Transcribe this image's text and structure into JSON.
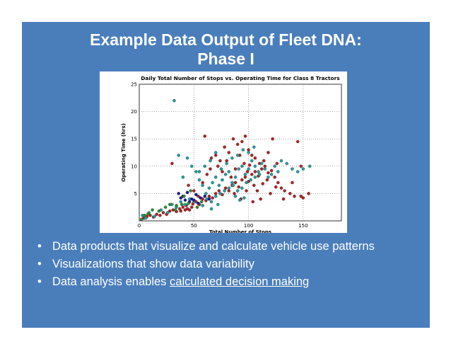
{
  "slide": {
    "title_line1": "Example Data Output of Fleet DNA:",
    "title_line2": "Phase I",
    "background_color": "#4a7ebb",
    "bullets": [
      {
        "prefix": "Data products that visualize and calculate vehicle use patterns",
        "link": "",
        "suffix": ""
      },
      {
        "prefix": "Visualizations that show data variability",
        "link": "",
        "suffix": ""
      },
      {
        "prefix": "Data analysis enables ",
        "link": "calculated decision making",
        "suffix": ""
      }
    ],
    "bullet_glyph": "•"
  },
  "chart_data": {
    "type": "scatter",
    "title": "Daily Total Number of Stops vs. Operating Time for Class 8 Tractors",
    "xlabel": "Total Number of Stops",
    "ylabel": "Operating Time (hrs)",
    "xlim": [
      0,
      185
    ],
    "ylim": [
      0,
      25
    ],
    "xticks": [
      0,
      50,
      100,
      150
    ],
    "yticks": [
      5,
      10,
      15,
      20,
      25
    ],
    "grid": true,
    "legend": "none",
    "series": [
      {
        "color": "#b22222",
        "points": [
          [
            4,
            0.5
          ],
          [
            7,
            0.8
          ],
          [
            10,
            1.0
          ],
          [
            13,
            0.7
          ],
          [
            16,
            1.2
          ],
          [
            19,
            1.0
          ],
          [
            22,
            1.5
          ],
          [
            25,
            1.2
          ],
          [
            28,
            1.8
          ],
          [
            31,
            2.0
          ],
          [
            34,
            1.7
          ],
          [
            37,
            2.2
          ],
          [
            40,
            2.5
          ],
          [
            43,
            2.8
          ],
          [
            46,
            2.0
          ],
          [
            49,
            3.1
          ],
          [
            52,
            3.5
          ],
          [
            55,
            3.0
          ],
          [
            58,
            4.0
          ],
          [
            61,
            3.7
          ],
          [
            64,
            4.5
          ],
          [
            67,
            4.2
          ],
          [
            70,
            5.0
          ],
          [
            73,
            5.5
          ],
          [
            76,
            4.8
          ],
          [
            79,
            6.0
          ],
          [
            82,
            5.5
          ],
          [
            85,
            6.5
          ],
          [
            88,
            7.0
          ],
          [
            91,
            6.2
          ],
          [
            94,
            7.5
          ],
          [
            97,
            8.0
          ],
          [
            100,
            7.2
          ],
          [
            103,
            8.5
          ],
          [
            106,
            9.0
          ],
          [
            109,
            8.2
          ],
          [
            112,
            9.5
          ],
          [
            115,
            10.0
          ],
          [
            118,
            8.8
          ],
          [
            121,
            9.2
          ],
          [
            124,
            8.0
          ],
          [
            127,
            7.0
          ],
          [
            130,
            6.0
          ],
          [
            133,
            5.5
          ],
          [
            138,
            5.0
          ],
          [
            142,
            4.5
          ],
          [
            148,
            4.5
          ],
          [
            150,
            4.2
          ],
          [
            155,
            5.0
          ],
          [
            58,
            7.0
          ],
          [
            62,
            8.5
          ],
          [
            66,
            11.5
          ],
          [
            70,
            12.0
          ],
          [
            74,
            11.0
          ],
          [
            78,
            13.5
          ],
          [
            82,
            12.5
          ],
          [
            86,
            15.0
          ],
          [
            90,
            14.0
          ],
          [
            94,
            14.5
          ],
          [
            97,
            15.5
          ],
          [
            100,
            13.0
          ],
          [
            103,
            12.0
          ],
          [
            106,
            11.5
          ],
          [
            110,
            10.5
          ],
          [
            114,
            11.0
          ],
          [
            118,
            12.5
          ],
          [
            122,
            15.0
          ],
          [
            126,
            10.5
          ],
          [
            60,
            15.5
          ],
          [
            65,
            9.5
          ],
          [
            72,
            10.0
          ],
          [
            80,
            11.0
          ],
          [
            88,
            9.5
          ],
          [
            92,
            12.0
          ],
          [
            96,
            10.5
          ],
          [
            99,
            9.0
          ],
          [
            101,
            10.2
          ],
          [
            105,
            6.5
          ],
          [
            108,
            5.5
          ],
          [
            111,
            4.0
          ],
          [
            113,
            6.8
          ],
          [
            117,
            7.5
          ],
          [
            120,
            5.0
          ],
          [
            125,
            6.2
          ],
          [
            132,
            4.0
          ],
          [
            140,
            7.0
          ],
          [
            145,
            14.5
          ],
          [
            148,
            10.0
          ],
          [
            30,
            10.5
          ],
          [
            45,
            6.5
          ],
          [
            50,
            5.5
          ],
          [
            54,
            4.5
          ],
          [
            76,
            9.0
          ],
          [
            84,
            8.0
          ],
          [
            87,
            5.0
          ],
          [
            93,
            4.0
          ],
          [
            98,
            5.5
          ],
          [
            104,
            3.5
          ],
          [
            48,
            2.5
          ],
          [
            44,
            2.2
          ],
          [
            38,
            1.8
          ],
          [
            42,
            2.0
          ]
        ]
      },
      {
        "color": "#20a0a0",
        "points": [
          [
            3,
            1.0
          ],
          [
            6,
            0.5
          ],
          [
            9,
            1.5
          ],
          [
            14,
            0.8
          ],
          [
            20,
            2.0
          ],
          [
            26,
            1.5
          ],
          [
            32,
            22.0
          ],
          [
            36,
            12.0
          ],
          [
            40,
            8.0
          ],
          [
            44,
            11.5
          ],
          [
            48,
            10.0
          ],
          [
            52,
            9.0
          ],
          [
            55,
            7.5
          ],
          [
            58,
            6.5
          ],
          [
            61,
            5.0
          ],
          [
            64,
            6.0
          ],
          [
            67,
            7.0
          ],
          [
            70,
            8.0
          ],
          [
            73,
            6.5
          ],
          [
            76,
            7.5
          ],
          [
            79,
            8.5
          ],
          [
            82,
            9.0
          ],
          [
            85,
            7.0
          ],
          [
            88,
            8.0
          ],
          [
            91,
            9.5
          ],
          [
            94,
            10.0
          ],
          [
            97,
            8.5
          ],
          [
            100,
            9.5
          ],
          [
            103,
            11.0
          ],
          [
            106,
            10.0
          ],
          [
            109,
            9.0
          ],
          [
            112,
            10.5
          ],
          [
            115,
            9.5
          ],
          [
            118,
            8.0
          ],
          [
            121,
            8.5
          ],
          [
            124,
            10.0
          ],
          [
            127,
            9.0
          ],
          [
            130,
            11.0
          ],
          [
            135,
            10.5
          ],
          [
            140,
            9.5
          ],
          [
            145,
            9.0
          ],
          [
            150,
            9.5
          ],
          [
            156,
            10.0
          ],
          [
            62,
            4.0
          ],
          [
            66,
            3.5
          ],
          [
            70,
            4.5
          ],
          [
            74,
            5.0
          ],
          [
            78,
            5.5
          ],
          [
            82,
            6.0
          ],
          [
            86,
            6.5
          ],
          [
            90,
            5.5
          ],
          [
            94,
            6.0
          ],
          [
            98,
            7.0
          ],
          [
            102,
            7.5
          ],
          [
            106,
            8.0
          ],
          [
            110,
            8.5
          ],
          [
            90,
            12.0
          ],
          [
            95,
            13.0
          ],
          [
            100,
            12.5
          ],
          [
            105,
            13.5
          ],
          [
            85,
            11.5
          ],
          [
            80,
            10.5
          ],
          [
            75,
            9.5
          ],
          [
            55,
            9.0
          ],
          [
            60,
            10.0
          ],
          [
            65,
            11.0
          ],
          [
            70,
            12.5
          ],
          [
            50,
            3.5
          ],
          [
            46,
            4.0
          ],
          [
            42,
            3.0
          ],
          [
            38,
            3.5
          ],
          [
            34,
            2.5
          ],
          [
            30,
            3.0
          ],
          [
            88,
            4.5
          ],
          [
            92,
            3.8
          ],
          [
            96,
            4.2
          ],
          [
            58,
            2.8
          ],
          [
            66,
            2.2
          ],
          [
            72,
            3.0
          ]
        ]
      },
      {
        "color": "#1a1aa0",
        "points": [
          [
            36,
            5.0
          ],
          [
            40,
            4.5
          ],
          [
            44,
            5.2
          ],
          [
            48,
            4.0
          ],
          [
            52,
            4.8
          ],
          [
            56,
            4.2
          ],
          [
            42,
            3.8
          ],
          [
            46,
            3.5
          ],
          [
            38,
            4.2
          ],
          [
            50,
            3.8
          ],
          [
            54,
            3.2
          ],
          [
            60,
            4.5
          ],
          [
            64,
            4.0
          ]
        ]
      },
      {
        "color": "#2e8b2e",
        "points": [
          [
            2,
            0.3
          ],
          [
            5,
            1.0
          ],
          [
            8,
            1.3
          ],
          [
            12,
            2.0
          ],
          [
            18,
            1.8
          ],
          [
            24,
            2.5
          ],
          [
            28,
            3.0
          ],
          [
            34,
            2.8
          ],
          [
            39,
            3.0
          ],
          [
            41,
            4.5
          ],
          [
            45,
            3.2
          ],
          [
            47,
            5.5
          ],
          [
            53,
            2.5
          ],
          [
            57,
            3.5
          ],
          [
            33,
            2.0
          ]
        ]
      }
    ]
  }
}
